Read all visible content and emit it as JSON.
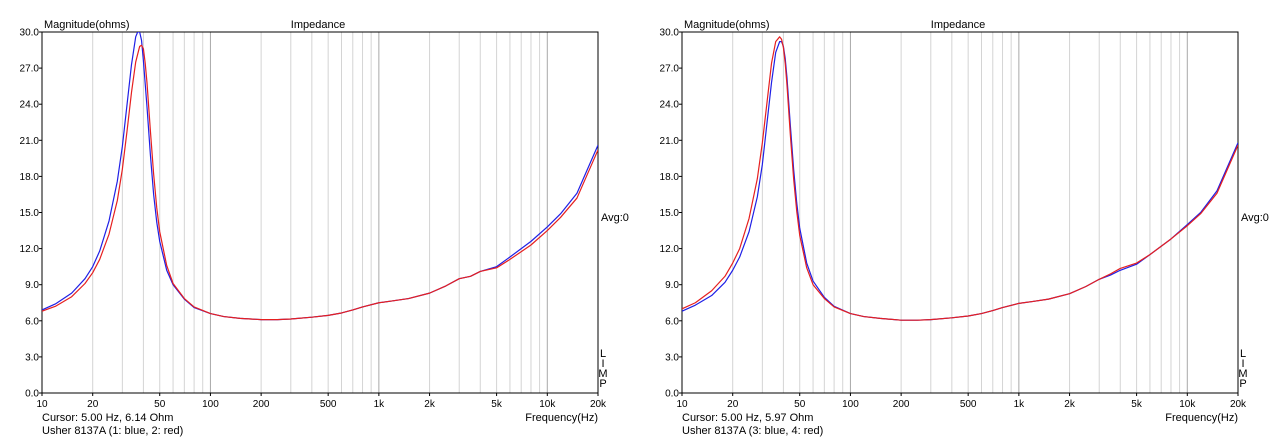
{
  "chart_data": [
    {
      "type": "line",
      "title": "Impedance",
      "ylabel": "Magnitude(ohms)",
      "xlabel": "Frequency(Hz)",
      "xscale": "log",
      "xlim": [
        10,
        20000
      ],
      "ylim": [
        0,
        30
      ],
      "grid": true,
      "x_ticks": [
        10,
        20,
        50,
        100,
        200,
        500,
        1000,
        2000,
        5000,
        10000,
        20000
      ],
      "x_tick_labels": [
        "10",
        "20",
        "50",
        "100",
        "200",
        "500",
        "1k",
        "2k",
        "5k",
        "10k",
        "20k"
      ],
      "y_ticks": [
        0,
        3,
        6,
        9,
        12,
        15,
        18,
        21,
        24,
        27,
        30
      ],
      "y_tick_labels": [
        "0.0",
        "3.0",
        "6.0",
        "9.0",
        "12.0",
        "15.0",
        "18.0",
        "21.0",
        "24.0",
        "27.0",
        "30.0"
      ],
      "avg_label": "Avg:0",
      "side_letters": [
        "L",
        "I",
        "M",
        "P"
      ],
      "cursor_text": "Cursor: 5.00 Hz, 6.14 Ohm",
      "legend_text": "Usher 8137A (1: blue, 2: red)",
      "series": [
        {
          "color": "#1f1fe6",
          "x": [
            10,
            12,
            15,
            18,
            20,
            22,
            25,
            28,
            30,
            32,
            34,
            36,
            37,
            38,
            39,
            40,
            42,
            44,
            46,
            48,
            50,
            55,
            60,
            70,
            80,
            100,
            120,
            150,
            200,
            250,
            300,
            400,
            500,
            600,
            700,
            800,
            1000,
            1200,
            1500,
            2000,
            2500,
            3000,
            3500,
            4000,
            5000,
            6000,
            8000,
            10000,
            12000,
            15000,
            20000
          ],
          "y": [
            6.9,
            7.4,
            8.3,
            9.5,
            10.5,
            11.8,
            14.3,
            17.6,
            20.5,
            24.0,
            27.3,
            29.6,
            30.0,
            30.0,
            29.3,
            27.6,
            23.8,
            19.8,
            16.5,
            14.2,
            12.6,
            10.2,
            9.0,
            7.8,
            7.1,
            6.6,
            6.35,
            6.2,
            6.1,
            6.1,
            6.15,
            6.3,
            6.45,
            6.65,
            6.9,
            7.15,
            7.5,
            7.65,
            7.85,
            8.3,
            8.9,
            9.5,
            9.7,
            10.1,
            10.5,
            11.3,
            12.6,
            13.8,
            14.9,
            16.6,
            20.6
          ]
        },
        {
          "color": "#e61f1f",
          "x": [
            10,
            12,
            15,
            18,
            20,
            22,
            25,
            28,
            30,
            32,
            34,
            36,
            38,
            39,
            40,
            41,
            42,
            44,
            46,
            48,
            50,
            55,
            60,
            70,
            80,
            100,
            120,
            150,
            200,
            250,
            300,
            400,
            500,
            600,
            700,
            800,
            1000,
            1200,
            1500,
            2000,
            2500,
            3000,
            3500,
            4000,
            5000,
            6000,
            8000,
            10000,
            12000,
            15000,
            20000
          ],
          "y": [
            6.8,
            7.2,
            8.0,
            9.1,
            10.0,
            11.1,
            13.2,
            16.0,
            18.6,
            21.8,
            25.0,
            27.5,
            28.8,
            28.9,
            28.6,
            27.4,
            25.8,
            21.8,
            18.2,
            15.4,
            13.4,
            10.6,
            9.1,
            7.85,
            7.15,
            6.6,
            6.35,
            6.2,
            6.1,
            6.1,
            6.15,
            6.3,
            6.45,
            6.65,
            6.9,
            7.15,
            7.5,
            7.65,
            7.85,
            8.3,
            8.9,
            9.5,
            9.7,
            10.1,
            10.4,
            11.1,
            12.3,
            13.5,
            14.6,
            16.2,
            20.2
          ]
        }
      ]
    },
    {
      "type": "line",
      "title": "Impedance",
      "ylabel": "Magnitude(ohms)",
      "xlabel": "Frequency(Hz)",
      "xscale": "log",
      "xlim": [
        10,
        20000
      ],
      "ylim": [
        0,
        30
      ],
      "grid": true,
      "x_ticks": [
        10,
        20,
        50,
        100,
        200,
        500,
        1000,
        2000,
        5000,
        10000,
        20000
      ],
      "x_tick_labels": [
        "10",
        "20",
        "50",
        "100",
        "200",
        "500",
        "1k",
        "2k",
        "5k",
        "10k",
        "20k"
      ],
      "y_ticks": [
        0,
        3,
        6,
        9,
        12,
        15,
        18,
        21,
        24,
        27,
        30
      ],
      "y_tick_labels": [
        "0.0",
        "3.0",
        "6.0",
        "9.0",
        "12.0",
        "15.0",
        "18.0",
        "21.0",
        "24.0",
        "27.0",
        "30.0"
      ],
      "avg_label": "Avg:0",
      "side_letters": [
        "L",
        "I",
        "M",
        "P"
      ],
      "cursor_text": "Cursor: 5.00 Hz, 5.97 Ohm",
      "legend_text": "Usher 8137A (3: blue, 4: red)",
      "series": [
        {
          "color": "#1f1fe6",
          "x": [
            10,
            12,
            15,
            18,
            20,
            22,
            25,
            28,
            30,
            32,
            34,
            36,
            38,
            39,
            40,
            41,
            42,
            44,
            46,
            48,
            50,
            55,
            60,
            70,
            80,
            100,
            120,
            150,
            200,
            250,
            300,
            400,
            500,
            600,
            700,
            800,
            1000,
            1200,
            1500,
            2000,
            2500,
            3000,
            3500,
            4000,
            5000,
            6000,
            8000,
            10000,
            12000,
            15000,
            20000
          ],
          "y": [
            6.8,
            7.3,
            8.1,
            9.2,
            10.2,
            11.3,
            13.4,
            16.3,
            19.0,
            22.5,
            25.8,
            28.3,
            29.2,
            29.2,
            28.8,
            27.8,
            26.2,
            22.2,
            18.6,
            15.8,
            13.7,
            10.8,
            9.3,
            7.95,
            7.2,
            6.6,
            6.35,
            6.2,
            6.05,
            6.05,
            6.1,
            6.25,
            6.4,
            6.6,
            6.85,
            7.1,
            7.45,
            7.6,
            7.8,
            8.25,
            8.85,
            9.45,
            9.8,
            10.2,
            10.7,
            11.5,
            12.8,
            14.0,
            15.0,
            16.8,
            20.8
          ]
        },
        {
          "color": "#e61f1f",
          "x": [
            10,
            12,
            15,
            18,
            20,
            22,
            25,
            28,
            30,
            32,
            34,
            36,
            38,
            39,
            40,
            41,
            42,
            44,
            46,
            48,
            50,
            55,
            60,
            70,
            80,
            100,
            120,
            150,
            200,
            250,
            300,
            400,
            500,
            600,
            700,
            800,
            1000,
            1200,
            1500,
            2000,
            2500,
            3000,
            3500,
            4000,
            5000,
            6000,
            8000,
            10000,
            12000,
            15000,
            20000
          ],
          "y": [
            7.0,
            7.5,
            8.5,
            9.7,
            10.8,
            12.0,
            14.5,
            17.8,
            20.8,
            24.2,
            27.4,
            29.2,
            29.6,
            29.4,
            28.7,
            27.4,
            25.6,
            21.4,
            17.8,
            15.1,
            13.1,
            10.4,
            9.0,
            7.85,
            7.15,
            6.6,
            6.35,
            6.2,
            6.05,
            6.05,
            6.1,
            6.25,
            6.4,
            6.6,
            6.85,
            7.1,
            7.45,
            7.6,
            7.8,
            8.25,
            8.85,
            9.45,
            9.9,
            10.35,
            10.8,
            11.5,
            12.8,
            13.9,
            14.9,
            16.6,
            20.6
          ]
        }
      ]
    }
  ]
}
